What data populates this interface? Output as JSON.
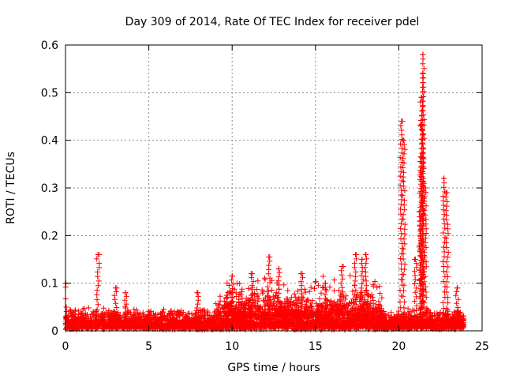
{
  "chart_data": {
    "type": "scatter",
    "title": "Day 309 of 2014, Rate Of TEC Index for receiver pdel",
    "xlabel": "GPS time / hours",
    "ylabel": "ROTI / TECUs",
    "xlim": [
      0,
      25
    ],
    "ylim": [
      0,
      0.6
    ],
    "x_ticks": [
      0,
      5,
      10,
      15,
      20,
      25
    ],
    "x_tick_labels": [
      "0",
      "5",
      "10",
      "15",
      "20",
      "25"
    ],
    "y_ticks": [
      0,
      0.1,
      0.2,
      0.3,
      0.4,
      0.5,
      0.6
    ],
    "y_tick_labels": [
      "0",
      "0.1",
      "0.2",
      "0.3",
      "0.4",
      "0.5",
      "0.6"
    ],
    "grid": true,
    "marker": "+",
    "marker_color": "#ff0000",
    "time_range_hours": [
      0,
      23.9
    ],
    "baseline_roti": [
      0.01,
      0.04
    ],
    "notable_spikes": [
      {
        "x": 0.0,
        "y": 0.1
      },
      {
        "x": 1.95,
        "y": 0.16
      },
      {
        "x": 3.0,
        "y": 0.09
      },
      {
        "x": 3.6,
        "y": 0.08
      },
      {
        "x": 7.9,
        "y": 0.08
      },
      {
        "x": 10.0,
        "y": 0.115
      },
      {
        "x": 11.2,
        "y": 0.12
      },
      {
        "x": 12.2,
        "y": 0.155
      },
      {
        "x": 12.8,
        "y": 0.13
      },
      {
        "x": 14.2,
        "y": 0.12
      },
      {
        "x": 15.6,
        "y": 0.1
      },
      {
        "x": 16.6,
        "y": 0.135
      },
      {
        "x": 17.4,
        "y": 0.16
      },
      {
        "x": 17.8,
        "y": 0.15
      },
      {
        "x": 18.0,
        "y": 0.16
      },
      {
        "x": 20.15,
        "y": 0.44
      },
      {
        "x": 20.3,
        "y": 0.4
      },
      {
        "x": 21.0,
        "y": 0.15
      },
      {
        "x": 21.3,
        "y": 0.24
      },
      {
        "x": 21.45,
        "y": 0.58
      },
      {
        "x": 21.45,
        "y": 0.54
      },
      {
        "x": 21.35,
        "y": 0.49
      },
      {
        "x": 21.4,
        "y": 0.43
      },
      {
        "x": 21.3,
        "y": 0.365
      },
      {
        "x": 21.6,
        "y": 0.3
      },
      {
        "x": 22.7,
        "y": 0.32
      },
      {
        "x": 22.9,
        "y": 0.29
      },
      {
        "x": 23.5,
        "y": 0.09
      }
    ]
  }
}
